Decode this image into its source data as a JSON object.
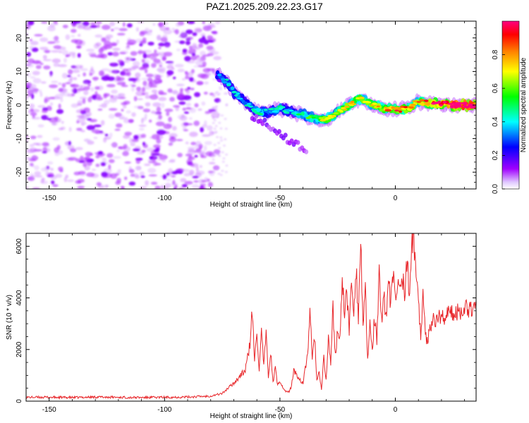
{
  "title": "PAZ1.2025.209.22.23.G17",
  "chart_data": [
    {
      "type": "heatmap",
      "xlabel": "Height of straight line (km)",
      "ylabel": "Frequency (Hz)",
      "xlim": [
        -160,
        35
      ],
      "ylim": [
        -25,
        25
      ],
      "xticks": [
        -150,
        -100,
        -50,
        0
      ],
      "yticks": [
        -20,
        -10,
        0,
        10,
        20
      ],
      "grid": false,
      "colorbar": {
        "label": "Normalized spectral amplitude",
        "range": [
          0,
          1
        ],
        "ticks": [
          "0.0",
          "0.2",
          "0.4",
          "0.6",
          "0.8"
        ],
        "colormap": [
          "#ffffff",
          "#a000ff",
          "#0000ff",
          "#00ffff",
          "#00ff00",
          "#ffff00",
          "#ff8000",
          "#ff0000",
          "#ff0080"
        ]
      },
      "noise_region_x": [
        -160,
        -77
      ],
      "ridge": {
        "x": [
          -77,
          -73,
          -70,
          -65,
          -60,
          -55,
          -50,
          -45,
          -40,
          -35,
          -30,
          -25,
          -20,
          -15,
          -10,
          -5,
          0,
          5,
          10,
          15,
          20,
          25,
          30,
          35
        ],
        "freq": [
          9,
          7,
          4,
          1,
          -2,
          -2,
          -1,
          -2,
          -3,
          -4,
          -4.5,
          -2,
          0,
          2,
          0,
          -1,
          -1.5,
          -1,
          1,
          0.5,
          0.5,
          0,
          0,
          0
        ],
        "amplitude": [
          0.25,
          0.3,
          0.3,
          0.3,
          0.35,
          0.3,
          0.35,
          0.3,
          0.4,
          0.45,
          0.55,
          0.5,
          0.6,
          0.55,
          0.55,
          0.6,
          0.7,
          0.65,
          0.6,
          0.75,
          0.8,
          0.9,
          0.95,
          0.95
        ]
      },
      "branch": {
        "x": [
          -62,
          -55,
          -50,
          -45,
          -40,
          -38
        ],
        "freq": [
          -3,
          -6,
          -9,
          -11,
          -13,
          -15
        ]
      }
    },
    {
      "type": "line",
      "xlabel": "Height of straight line (km)",
      "ylabel": "SNR (10 * v/v)",
      "xlim": [
        -160,
        35
      ],
      "ylim": [
        0,
        6500
      ],
      "xticks": [
        -150,
        -100,
        -50,
        0
      ],
      "yticks": [
        0,
        2000,
        4000,
        6000
      ],
      "grid": false,
      "series": [
        {
          "color": "#e8262a",
          "x": [
            -160,
            -150,
            -140,
            -130,
            -120,
            -110,
            -100,
            -90,
            -80,
            -75,
            -70,
            -65,
            -63,
            -62,
            -61,
            -60,
            -59,
            -58,
            -57,
            -56,
            -55,
            -54,
            -53,
            -52,
            -51,
            -50,
            -48,
            -46,
            -45,
            -44,
            -42,
            -40,
            -38,
            -37,
            -36,
            -35,
            -34,
            -33,
            -32,
            -31,
            -30,
            -29,
            -28,
            -27,
            -26,
            -25,
            -24,
            -23,
            -22,
            -21,
            -20,
            -19,
            -18,
            -17,
            -16,
            -15,
            -14,
            -13,
            -12,
            -11,
            -10,
            -9,
            -8,
            -7,
            -6,
            -5,
            -4,
            -3,
            -2,
            -1,
            0,
            1,
            2,
            3,
            4,
            5,
            6,
            7,
            8,
            9,
            10,
            11,
            12,
            13,
            14,
            15,
            20,
            25,
            30,
            35
          ],
          "y": [
            150,
            150,
            140,
            160,
            150,
            140,
            150,
            160,
            200,
            300,
            700,
            1200,
            2200,
            3500,
            1500,
            2800,
            1200,
            2600,
            1400,
            2500,
            1000,
            1900,
            700,
            1300,
            600,
            800,
            400,
            350,
            600,
            1200,
            900,
            700,
            1800,
            3600,
            1500,
            2600,
            800,
            1100,
            400,
            1700,
            800,
            2400,
            1500,
            3600,
            1700,
            2800,
            2300,
            5000,
            3200,
            4300,
            2700,
            4700,
            3500,
            5200,
            3300,
            6300,
            3000,
            4200,
            1500,
            2900,
            2000,
            3200,
            2300,
            4800,
            3100,
            4300,
            3200,
            4700,
            3700,
            4900,
            3900,
            4600,
            4200,
            5100,
            4000,
            5400,
            4300,
            5800,
            6500,
            4900,
            4000,
            2600,
            4200,
            2500,
            2400,
            3000,
            3300,
            3400,
            3600,
            3700
          ]
        }
      ]
    }
  ]
}
